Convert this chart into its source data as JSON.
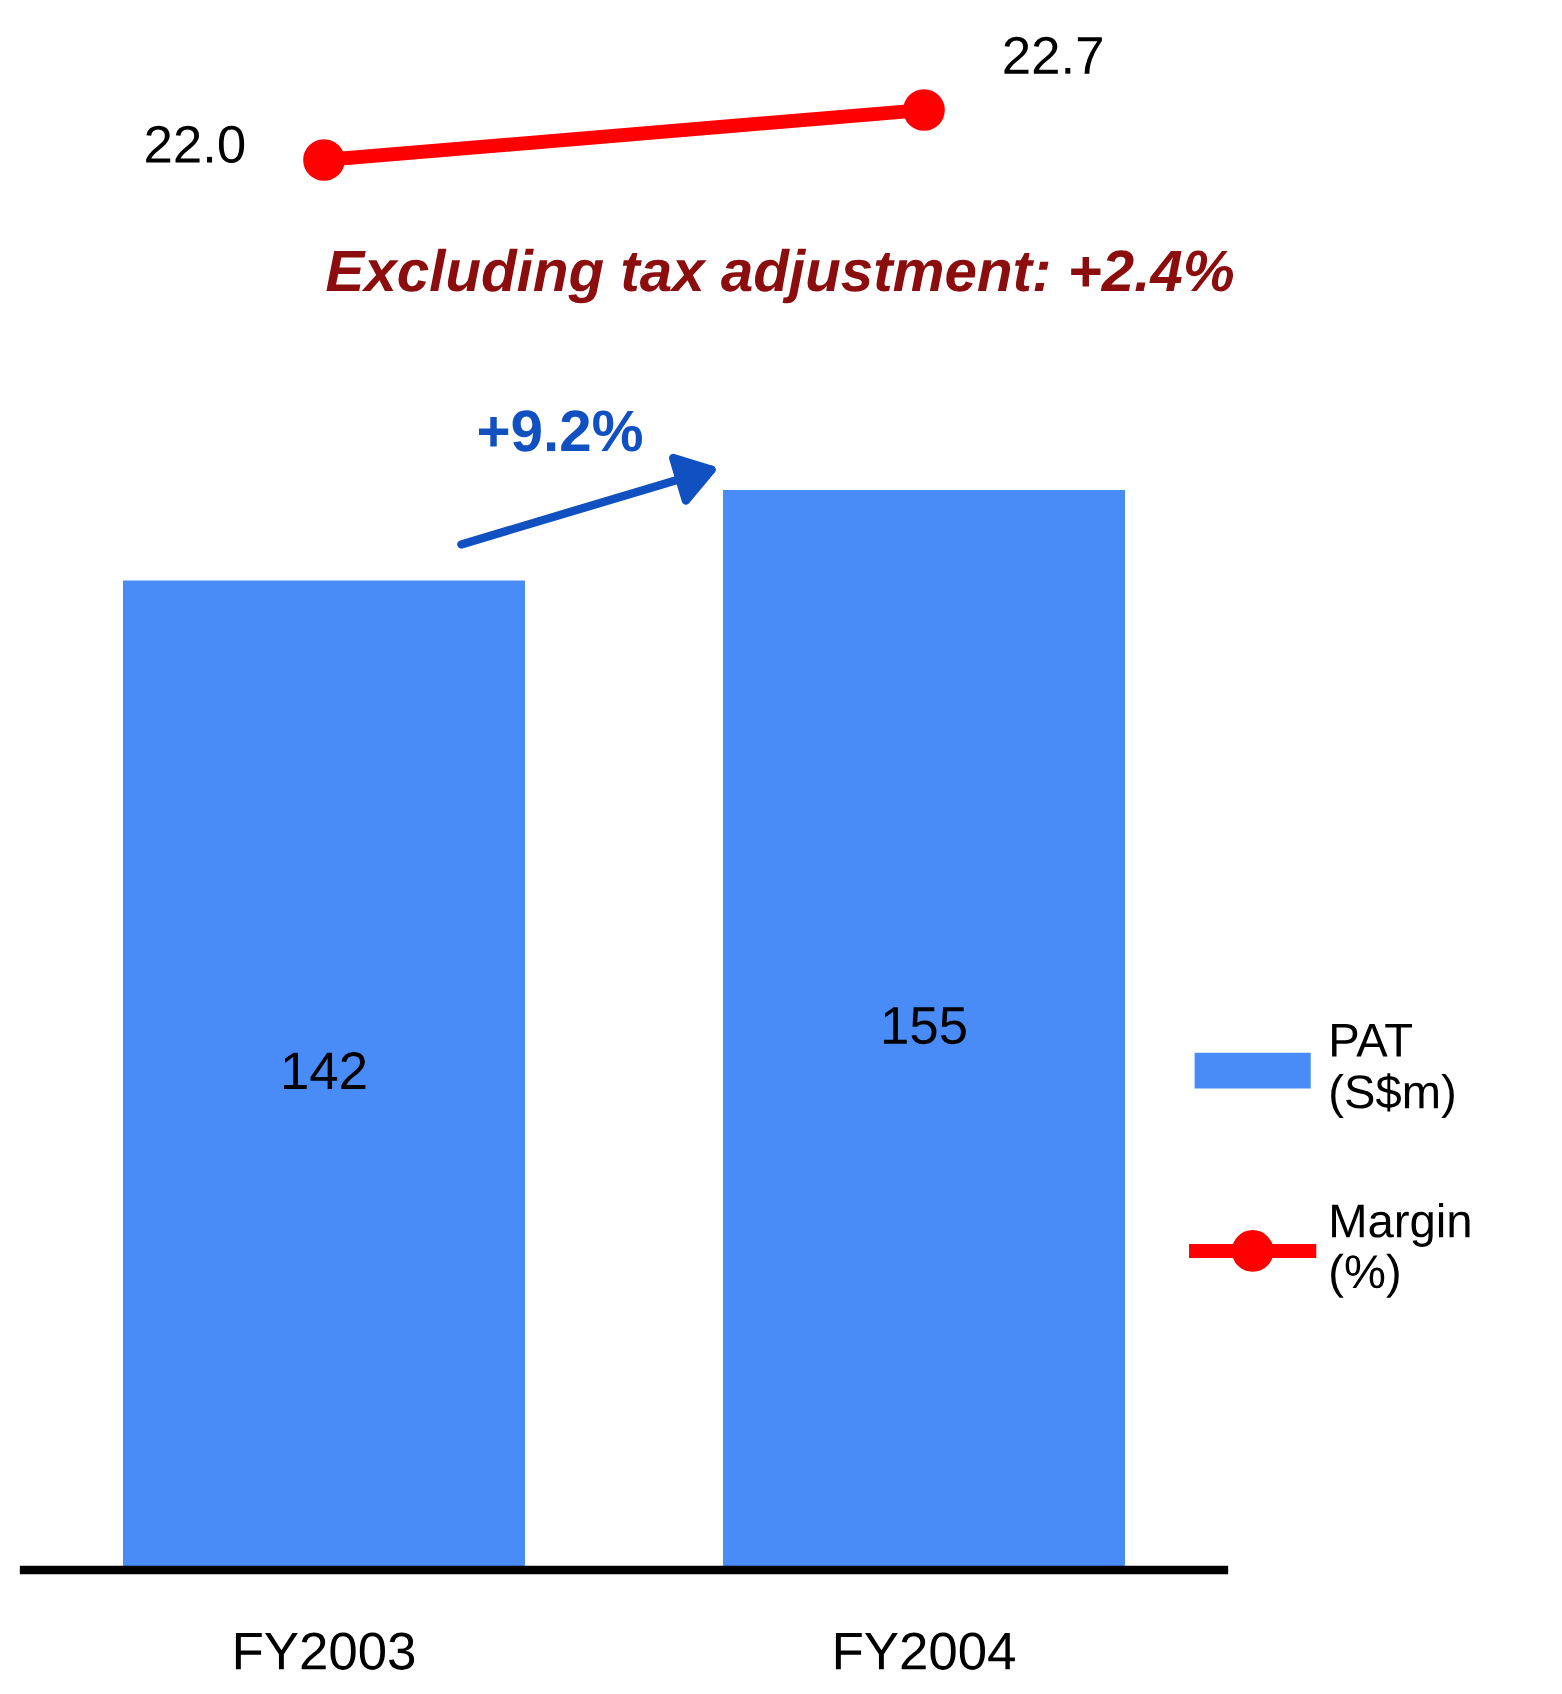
{
  "chart_data": [
    {
      "type": "line",
      "categories": [
        null,
        null
      ],
      "tick_labels": false,
      "marker": "circle",
      "series": [
        {
          "name": "Margin\n(%)",
          "color": "#ff0000",
          "values": [
            22.0,
            22.7
          ],
          "value_labels": [
            "22.0",
            "22.7"
          ]
        }
      ]
    },
    {
      "type": "bar",
      "categories": [
        "FY2003",
        "FY2004"
      ],
      "tick_labels": "x",
      "legend": "right",
      "series": [
        {
          "name": "PAT\n(S$m)",
          "color": "#4a8cf7",
          "values": [
            142,
            155
          ],
          "value_labels": [
            "142",
            "155"
          ]
        }
      ],
      "annotations": [
        "Excluding tax adjustment: +2.4%",
        "+9.2%"
      ]
    }
  ]
}
